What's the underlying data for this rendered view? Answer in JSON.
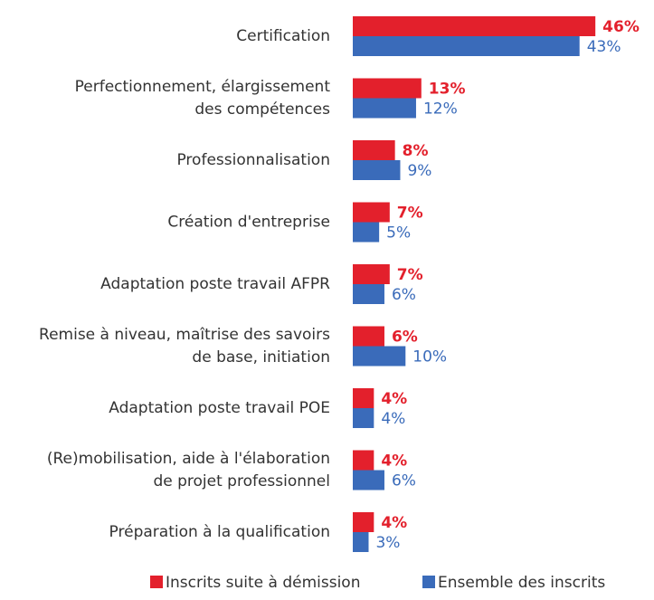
{
  "chart_data": {
    "type": "bar",
    "orientation": "horizontal",
    "categories": [
      [
        "Certification"
      ],
      [
        "Perfectionnement, élargissement",
        "des compétences"
      ],
      [
        "Professionnalisation"
      ],
      [
        "Création d'entreprise"
      ],
      [
        "Adaptation poste travail AFPR"
      ],
      [
        "Remise à niveau, maîtrise des savoirs",
        "de base, initiation"
      ],
      [
        "Adaptation poste travail POE"
      ],
      [
        "(Re)mobilisation, aide à l'élaboration",
        "de projet professionnel"
      ],
      [
        "Préparation à la qualification"
      ]
    ],
    "series": [
      {
        "name": "Inscrits suite à démission",
        "color": "#e3202c",
        "values": [
          46,
          13,
          8,
          7,
          7,
          6,
          4,
          4,
          4
        ],
        "value_labels": [
          "46%",
          "13%",
          "8%",
          "7%",
          "7%",
          "6%",
          "4%",
          "4%",
          "4%"
        ]
      },
      {
        "name": "Ensemble des inscrits",
        "color": "#3a6bba",
        "values": [
          43,
          12,
          9,
          5,
          6,
          10,
          4,
          6,
          3
        ],
        "value_labels": [
          "43%",
          "12%",
          "9%",
          "5%",
          "6%",
          "10%",
          "4%",
          "6%",
          "3%"
        ]
      }
    ],
    "legend": "bottom"
  }
}
